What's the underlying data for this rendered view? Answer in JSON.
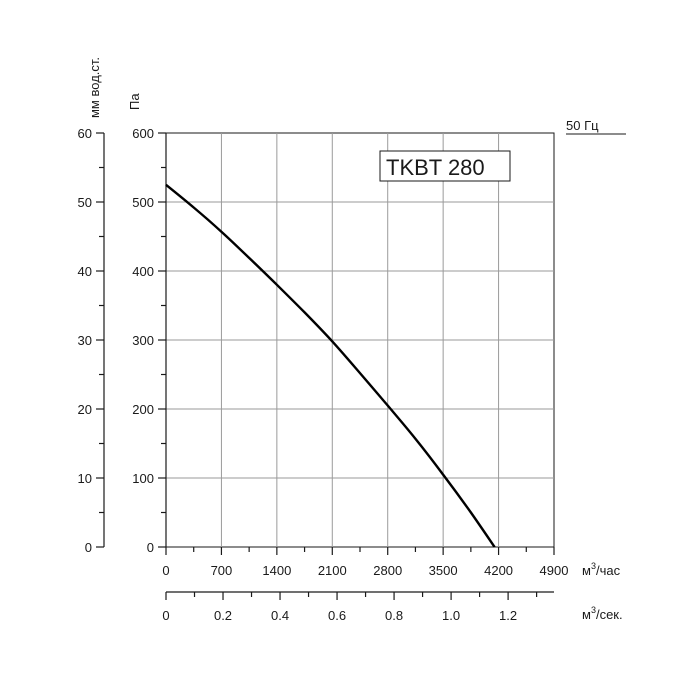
{
  "chart_data": {
    "type": "line",
    "title": "TKBT 280",
    "frequency_label": "50 Гц",
    "y_left_outer": {
      "label": "мм вод.ст.",
      "ticks": [
        "0",
        "10",
        "20",
        "30",
        "40",
        "50",
        "60"
      ],
      "range": [
        0,
        60
      ]
    },
    "y_left_inner": {
      "label": "Па",
      "ticks": [
        "0",
        "100",
        "200",
        "300",
        "400",
        "500",
        "600"
      ],
      "range": [
        0,
        600
      ]
    },
    "x_primary": {
      "unit_main": "м",
      "unit_sup": "3",
      "unit_tail": "/час",
      "ticks": [
        "0",
        "700",
        "1400",
        "2100",
        "2800",
        "3500",
        "4200",
        "4900"
      ],
      "range": [
        0,
        4900
      ]
    },
    "x_secondary": {
      "unit_main": "м",
      "unit_sup": "3",
      "unit_tail": "/сек.",
      "ticks": [
        "0",
        "0.2",
        "0.4",
        "0.6",
        "0.8",
        "1.0",
        "1.2"
      ],
      "range": [
        0,
        1.361
      ]
    },
    "grid": true,
    "series": [
      {
        "x": [
          0,
          350,
          700,
          1050,
          1400,
          1750,
          2100,
          2450,
          2800,
          3150,
          3500,
          3850,
          4150
        ],
        "y": [
          525,
          492,
          457,
          419,
          380,
          340,
          298,
          252,
          205,
          157,
          105,
          50,
          0
        ]
      }
    ]
  }
}
